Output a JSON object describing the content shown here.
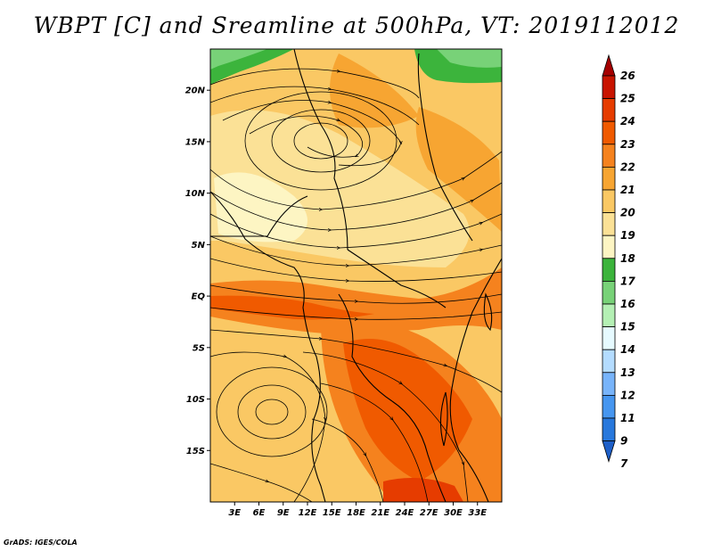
{
  "title": "WBPT [C] and Sreamline at 500hPa, VT: 2019112012",
  "credit": "GrADS: IGES/COLA",
  "map": {
    "lon_range": [
      0,
      36
    ],
    "lat_range": [
      -20,
      24
    ],
    "lat_ticks": [
      "20N",
      "15N",
      "10N",
      "5N",
      "EQ",
      "5S",
      "10S",
      "15S"
    ],
    "lon_ticks": [
      "3E",
      "6E",
      "9E",
      "12E",
      "15E",
      "18E",
      "21E",
      "24E",
      "27E",
      "30E",
      "33E"
    ]
  },
  "colorbar": {
    "levels": [
      "26",
      "25",
      "24",
      "23",
      "22",
      "21",
      "20",
      "19",
      "18",
      "17",
      "16",
      "15",
      "14",
      "13",
      "12",
      "11",
      "9",
      "7"
    ],
    "colors": [
      "#a50000",
      "#c81400",
      "#e63c00",
      "#f05a00",
      "#f5821e",
      "#f7a532",
      "#fac864",
      "#fbe196",
      "#fdf5c3",
      "#3cb43c",
      "#78d278",
      "#b4f0b4",
      "#e6faff",
      "#b4dcff",
      "#78b4fa",
      "#4696f0",
      "#2878dc",
      "#1e5fc8"
    ]
  },
  "field": {
    "vortices": [
      {
        "lon": 12,
        "lat": 16,
        "sense": "cyclonic"
      },
      {
        "lon": 6,
        "lat": -11,
        "sense": "anticyclonic"
      }
    ]
  }
}
